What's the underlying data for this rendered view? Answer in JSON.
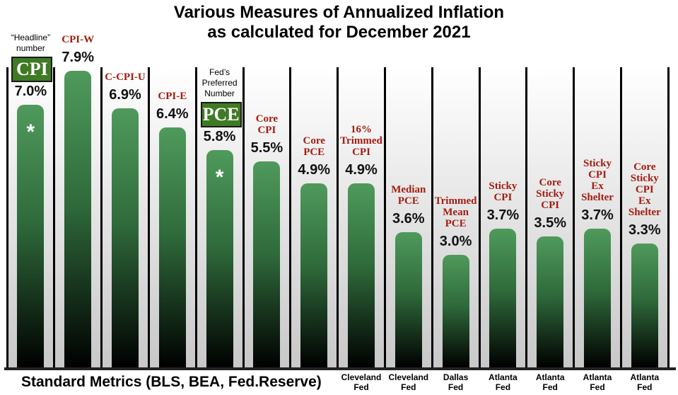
{
  "chart_data": {
    "type": "bar",
    "title": "Various Measures of Annualized Inflation",
    "subtitle": "as calculated for December 2021",
    "categories": [
      "CPI",
      "CPI-W",
      "C-CPI-U",
      "CPI-E",
      "PCE",
      "Core CPI",
      "Core PCE",
      "16% Trimmed CPI",
      "Median PCE",
      "Trimmed Mean PCE",
      "Sticky CPI",
      "Core Sticky CPI",
      "Sticky CPI Ex Shelter",
      "Core Sticky CPI Ex Shelter"
    ],
    "label_lines": [
      [
        "CPI"
      ],
      [
        "CPI-W"
      ],
      [
        "C-CPI-U"
      ],
      [
        "CPI-E"
      ],
      [
        "PCE"
      ],
      [
        "Core",
        "CPI"
      ],
      [
        "Core",
        "PCE"
      ],
      [
        "16%",
        "Trimmed",
        "CPI"
      ],
      [
        "Median",
        "PCE"
      ],
      [
        "Trimmed",
        "Mean",
        "PCE"
      ],
      [
        "Sticky",
        "CPI"
      ],
      [
        "Core",
        "Sticky",
        "CPI"
      ],
      [
        "Sticky",
        "CPI",
        "Ex",
        "Shelter"
      ],
      [
        "Core",
        "Sticky",
        "CPI",
        "Ex",
        "Shelter"
      ]
    ],
    "values": [
      7.0,
      7.9,
      6.9,
      6.4,
      5.8,
      5.5,
      4.9,
      4.9,
      3.6,
      3.0,
      3.7,
      3.5,
      3.7,
      3.3
    ],
    "value_labels": [
      "7.0%",
      "7.9%",
      "6.9%",
      "6.4%",
      "5.8%",
      "5.5%",
      "4.9%",
      "4.9%",
      "3.6%",
      "3.0%",
      "3.7%",
      "3.5%",
      "3.7%",
      "3.3%"
    ],
    "highlighted": [
      0,
      4
    ],
    "starred": [
      0,
      4
    ],
    "star_symbol": "*",
    "ylim": [
      0,
      8
    ],
    "grid": false,
    "colors": {
      "bar_top": "#4f9a5c",
      "bar_bottom": "#000000",
      "label": "#a31d10",
      "highlight_box": "#3f7a24"
    },
    "annotations": {
      "headline": [
        "“Headline”",
        "number"
      ],
      "preferred": [
        "Fed’s",
        "Preferred",
        "Number"
      ]
    },
    "group_label": "Standard Metrics (BLS, BEA, Fed.Reserve)",
    "sources": [
      null,
      null,
      null,
      null,
      null,
      null,
      null,
      [
        "Cleveland",
        "Fed"
      ],
      [
        "Cleveland",
        "Fed"
      ],
      [
        "Dallas",
        "Fed"
      ],
      [
        "Atlanta",
        "Fed"
      ],
      [
        "Atlanta",
        "Fed"
      ],
      [
        "Atlanta",
        "Fed"
      ],
      [
        "Atlanta",
        "Fed"
      ]
    ]
  }
}
